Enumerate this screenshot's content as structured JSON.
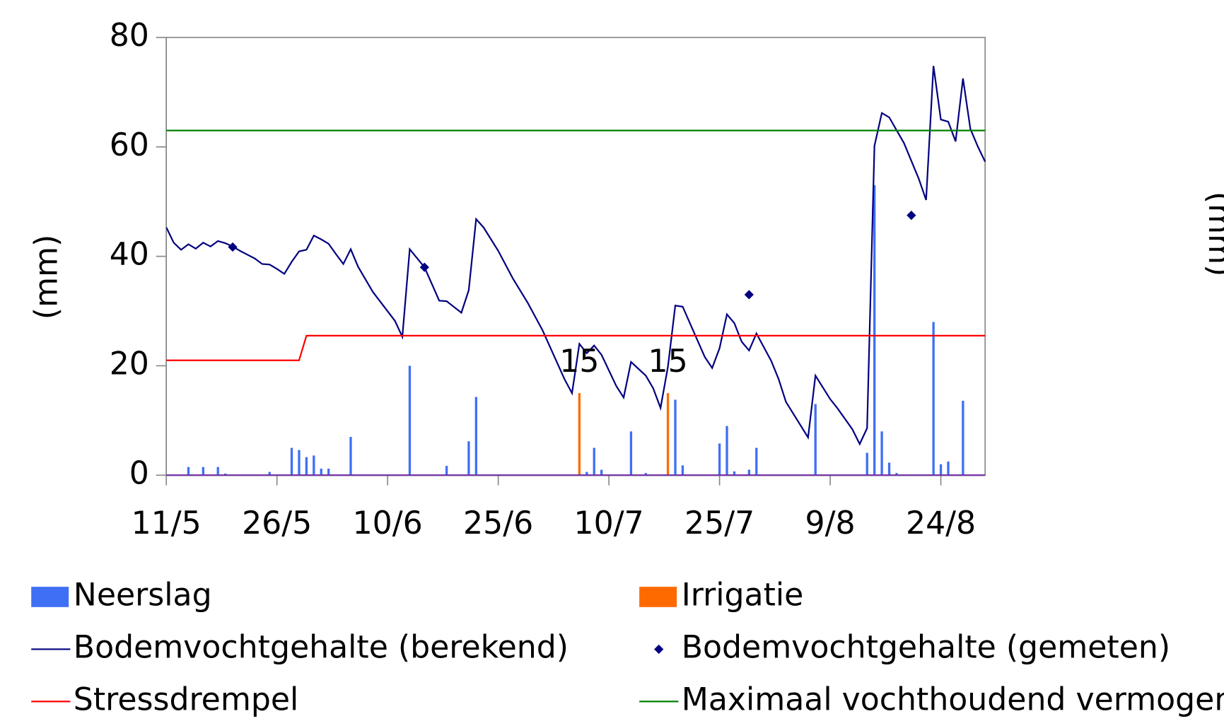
{
  "chart_data": {
    "type": "line",
    "y_label": "(mm)",
    "y2_label": "(mm)",
    "xlim": [
      0,
      111
    ],
    "xticks": [
      {
        "value": 0,
        "label": "11/5"
      },
      {
        "value": 15,
        "label": "26/5"
      },
      {
        "value": 30,
        "label": "10/6"
      },
      {
        "value": 45,
        "label": "25/6"
      },
      {
        "value": 60,
        "label": "10/7"
      },
      {
        "value": 75,
        "label": "25/7"
      },
      {
        "value": 90,
        "label": "9/8"
      },
      {
        "value": 105,
        "label": "24/8"
      }
    ],
    "ylim": [
      0,
      80
    ],
    "yticks": [
      0,
      20,
      40,
      60,
      80
    ],
    "series": [
      {
        "name": "Neerslag",
        "type": "bar",
        "color": "#3f6ff5",
        "x": [
          3,
          5,
          7,
          8,
          14,
          17,
          18,
          19,
          20,
          21,
          22,
          25,
          33,
          38,
          41,
          42,
          57,
          58,
          59,
          63,
          65,
          69,
          70,
          75,
          76,
          77,
          79,
          80,
          88,
          95,
          96,
          97,
          98,
          99,
          104,
          105,
          106,
          108
        ],
        "values": [
          1.5,
          1.5,
          1.5,
          0.3,
          0.6,
          5,
          4.6,
          3.3,
          3.6,
          1.2,
          1.2,
          7,
          20,
          1.7,
          6.2,
          14.3,
          0.6,
          5,
          1,
          8,
          0.4,
          13.8,
          1.8,
          5.8,
          9,
          0.7,
          1,
          5,
          13,
          4.1,
          53,
          8,
          2.3,
          0.4,
          28,
          2,
          2.5,
          13.6
        ]
      },
      {
        "name": "Irrigatie",
        "type": "bar",
        "color": "#ff6a00",
        "x": [
          56,
          68
        ],
        "values": [
          15,
          15
        ],
        "value_labels": [
          "15",
          "15"
        ]
      },
      {
        "name": "Bodemvochtgehalte (berekend)",
        "type": "line",
        "color": "#000080",
        "x": [
          0,
          1,
          2,
          3,
          4,
          5,
          6,
          7,
          8,
          9,
          10,
          11,
          12,
          13,
          14,
          15,
          16,
          17,
          18,
          19,
          20,
          21,
          22,
          23,
          24,
          25,
          26,
          28,
          31,
          32,
          33,
          35,
          37,
          38,
          40,
          41,
          42,
          43,
          45,
          47,
          49,
          51,
          54,
          55,
          56,
          57,
          58,
          59,
          61,
          62,
          63,
          65,
          66,
          67,
          68,
          69,
          70,
          73,
          74,
          75,
          76,
          77,
          78,
          79,
          80,
          82,
          83,
          84,
          87,
          88,
          90,
          91,
          93,
          94,
          95,
          96,
          97,
          98,
          100,
          102,
          103,
          104,
          105,
          106,
          107,
          108,
          109,
          110,
          111
        ],
        "values": [
          45.3,
          42.5,
          41.2,
          42.2,
          41.4,
          42.5,
          41.8,
          42.8,
          42.4,
          41.8,
          41,
          40.3,
          39.6,
          38.6,
          38.5,
          37.7,
          36.8,
          39,
          40.9,
          41.2,
          43.8,
          43.1,
          42.3,
          40.4,
          38.6,
          41.3,
          38.1,
          33.5,
          28.2,
          25.3,
          41.3,
          38,
          31.9,
          31.8,
          29.7,
          33.8,
          46.8,
          45.3,
          41,
          35.9,
          31.5,
          26.5,
          17.5,
          15,
          24,
          22.3,
          23.7,
          22,
          16.3,
          14.2,
          20.7,
          18.2,
          15.9,
          12.3,
          19.8,
          31,
          30.8,
          21.6,
          19.6,
          23.2,
          29.4,
          27.8,
          24.4,
          22.8,
          25.9,
          20.9,
          17.6,
          13.4,
          6.9,
          18.2,
          13.9,
          12.2,
          8.4,
          5.7,
          8.6,
          60.2,
          66.2,
          65.4,
          60.7,
          54.2,
          50.3,
          74.8,
          65,
          64.6,
          61,
          72.5,
          63.3,
          60.1,
          57.3
        ]
      },
      {
        "name": "Bodemvochtgehalte (gemeten)",
        "type": "scatter",
        "color": "#000080",
        "x": [
          9,
          35,
          79,
          101
        ],
        "values": [
          41.7,
          38,
          33,
          47.5
        ]
      },
      {
        "name": "Stressdrempel",
        "type": "line",
        "color": "#ff0000",
        "x": [
          0,
          18,
          19,
          111
        ],
        "values": [
          21,
          21,
          25.5,
          25.5
        ]
      },
      {
        "name": "Maximaal vochthoudend vermogen",
        "type": "line",
        "color": "#008000",
        "x": [
          0,
          111
        ],
        "values": [
          63,
          63
        ]
      }
    ]
  }
}
